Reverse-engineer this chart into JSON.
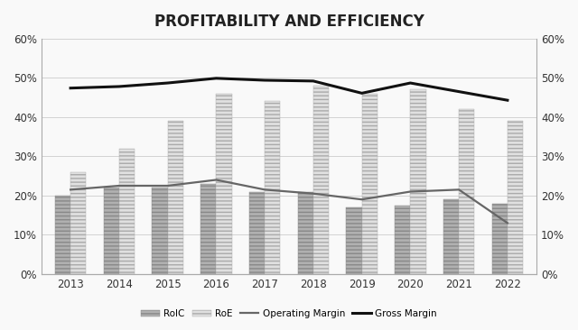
{
  "years": [
    2013,
    2014,
    2015,
    2016,
    2017,
    2018,
    2019,
    2020,
    2021,
    2022
  ],
  "roic": [
    0.2,
    0.22,
    0.22,
    0.23,
    0.21,
    0.21,
    0.17,
    0.175,
    0.19,
    0.18
  ],
  "roe": [
    0.26,
    0.32,
    0.39,
    0.46,
    0.44,
    0.48,
    0.46,
    0.47,
    0.42,
    0.39
  ],
  "operating_margin": [
    0.215,
    0.225,
    0.225,
    0.24,
    0.215,
    0.205,
    0.19,
    0.21,
    0.215,
    0.13
  ],
  "gross_margin": [
    0.474,
    0.478,
    0.487,
    0.499,
    0.494,
    0.492,
    0.461,
    0.487,
    0.465,
    0.443
  ],
  "title": "PROFITABILITY AND EFFICIENCY",
  "roic_color": "#b0b0b0",
  "roe_color": "#e0e0e0",
  "op_margin_color": "#666666",
  "gross_margin_color": "#111111",
  "ylim": [
    0,
    0.6
  ],
  "yticks": [
    0.0,
    0.1,
    0.2,
    0.3,
    0.4,
    0.5,
    0.6
  ],
  "bar_width": 0.32,
  "background_color": "#f9f9f9",
  "grid_color": "#cccccc",
  "spine_color": "#aaaaaa"
}
